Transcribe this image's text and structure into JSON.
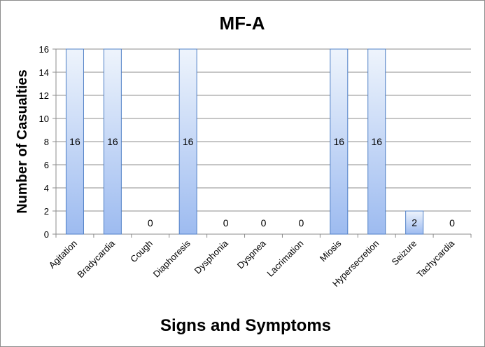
{
  "chart_data": {
    "type": "bar",
    "title": "MF-A",
    "xlabel": "Signs and Symptoms",
    "ylabel": "Number of Casualties",
    "categories": [
      "Agitation",
      "Bradycardia",
      "Cough",
      "Diaphoresis",
      "Dysphonia",
      "Dyspnea",
      "Lacrimation",
      "Miosis",
      "Hypersecretion",
      "Seizure",
      "Tachycardia"
    ],
    "values": [
      16,
      16,
      0,
      16,
      0,
      0,
      0,
      16,
      16,
      2,
      0
    ],
    "ylim": [
      0,
      16
    ],
    "yticks": [
      0,
      2,
      4,
      6,
      8,
      10,
      12,
      14,
      16
    ],
    "grid": true,
    "legend": "none",
    "colors": {
      "bar_top": "#eef4fc",
      "bar_bottom": "#9dbbf0",
      "bar_border": "#4f7fc6",
      "grid": "#8c8c8c"
    }
  }
}
